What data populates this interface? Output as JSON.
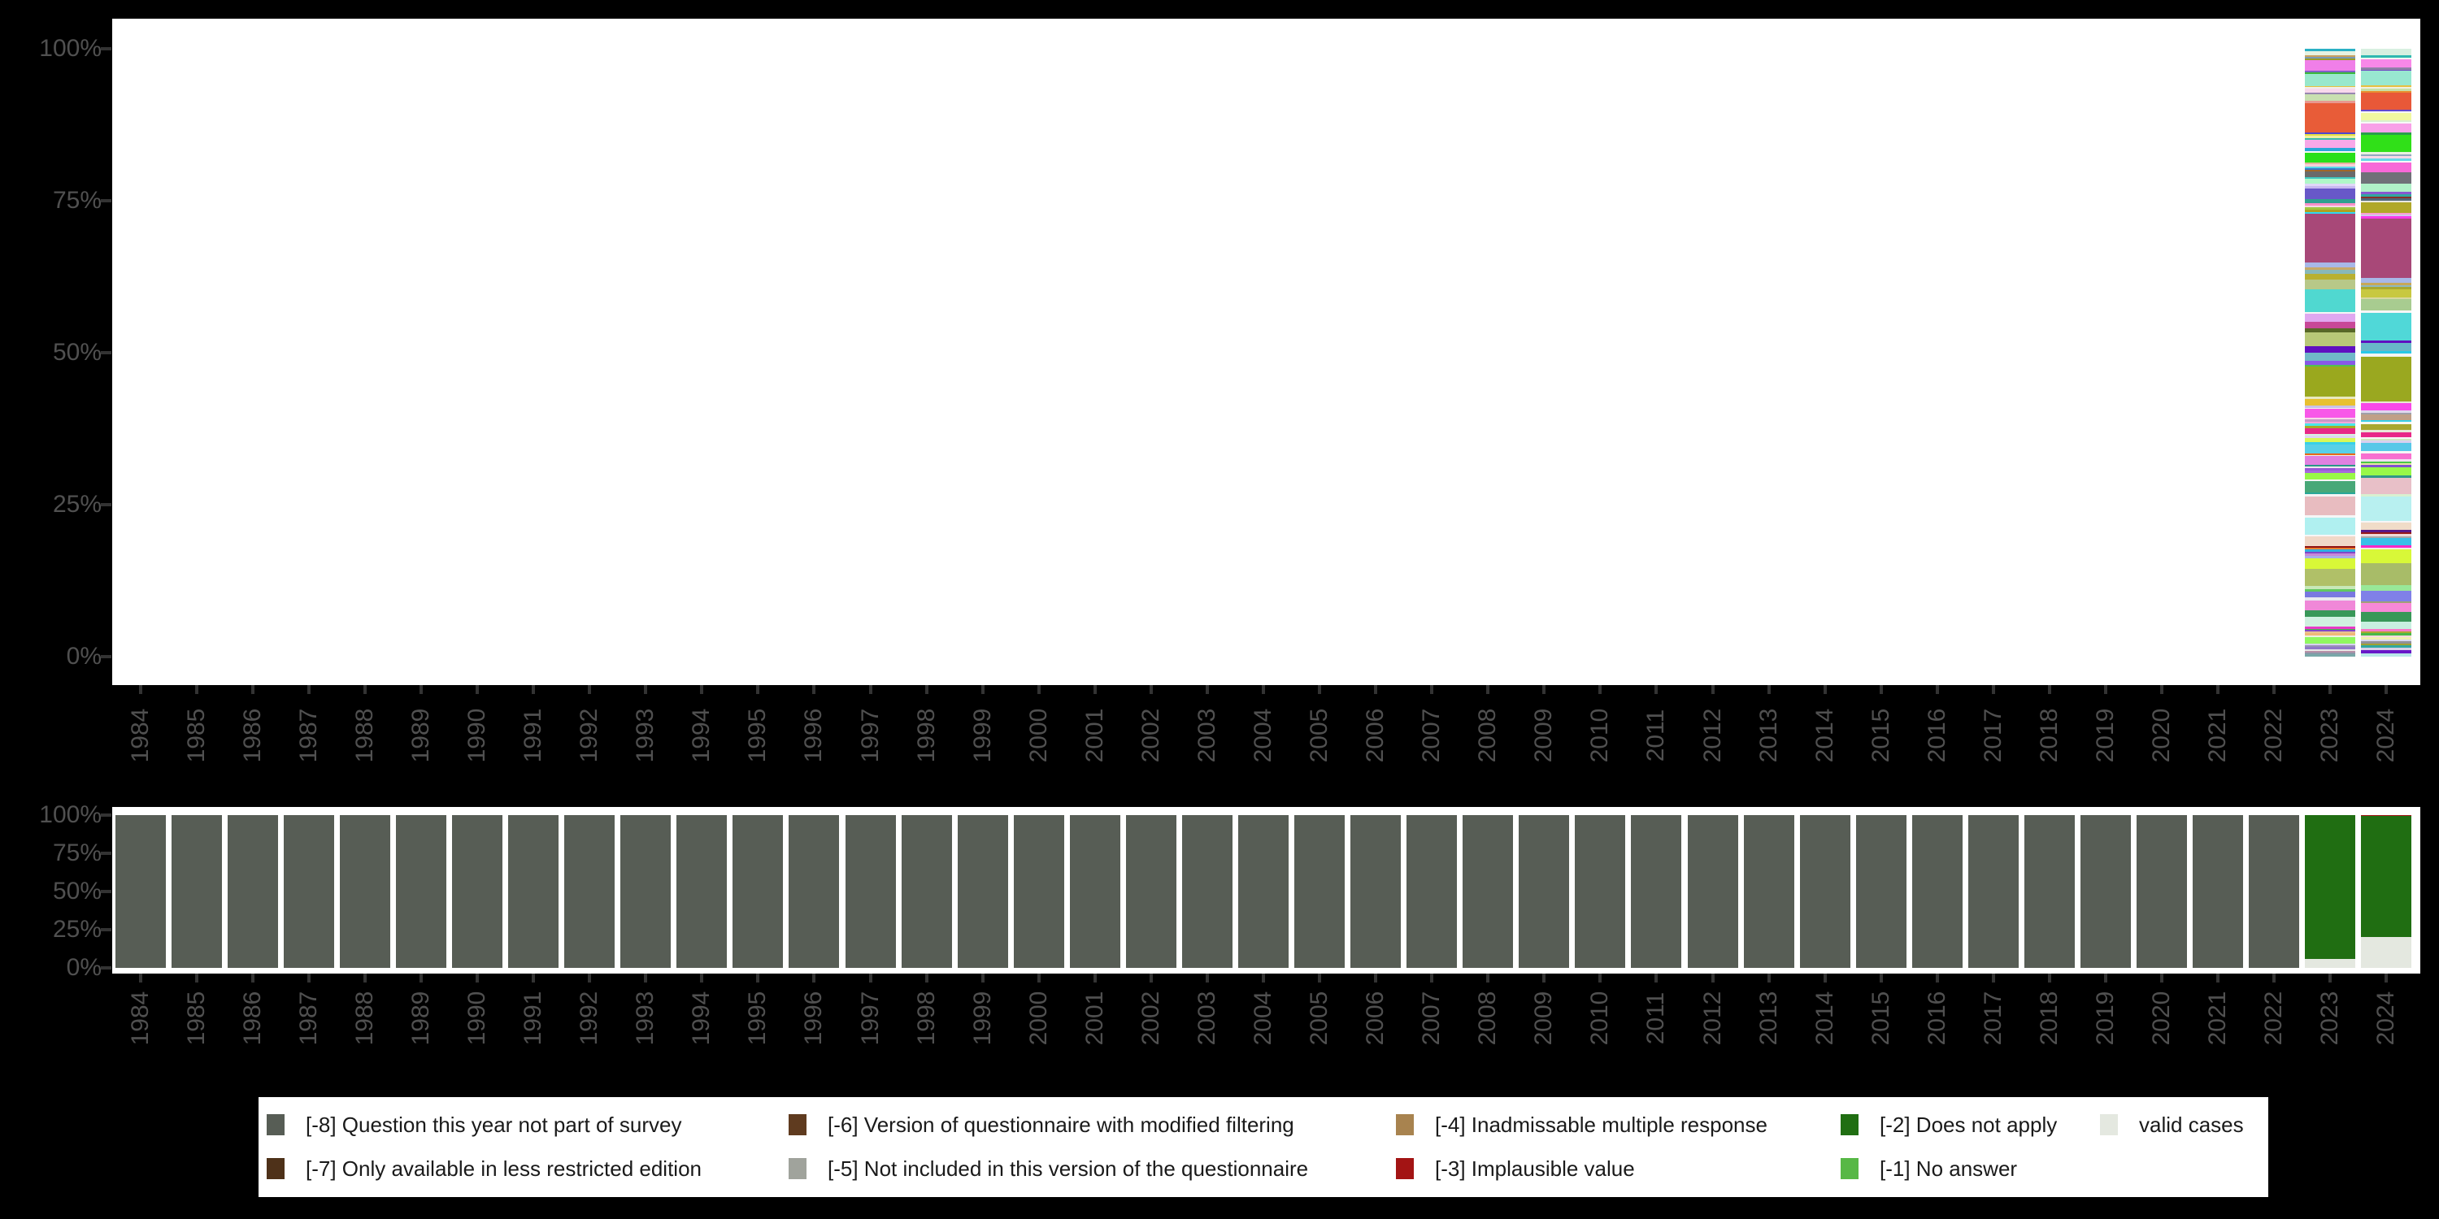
{
  "figure": {
    "background_color": "#000000",
    "plot_background_color": "#ffffff",
    "axis_label_color": "#505050",
    "tick_mark_color": "#333333"
  },
  "chart_data": [
    {
      "id": "top",
      "type": "bar",
      "subtype": "percent-stacked-column",
      "title": "",
      "xlabel": "",
      "ylabel": "",
      "ylim": [
        0,
        100
      ],
      "grid": false,
      "y_ticks": [
        "100%",
        "75%",
        "50%",
        "25%",
        "0%"
      ],
      "categories": [
        "1984",
        "1985",
        "1986",
        "1987",
        "1988",
        "1989",
        "1990",
        "1991",
        "1992",
        "1993",
        "1994",
        "1995",
        "1996",
        "1997",
        "1998",
        "1999",
        "2000",
        "2001",
        "2002",
        "2003",
        "2004",
        "2005",
        "2006",
        "2007",
        "2008",
        "2009",
        "2010",
        "2011",
        "2012",
        "2013",
        "2014",
        "2015",
        "2016",
        "2017",
        "2018",
        "2019",
        "2020",
        "2021",
        "2022",
        "2023",
        "2024"
      ],
      "note": "Distribution of valid answer categories; only 2023 and 2024 contain data. Segments listed top-to-bottom as [height_percent, color].",
      "bars": {
        "2023": [
          [
            0.36,
            "#2ab0c5"
          ],
          [
            0.75,
            "#e6f2e2"
          ],
          [
            0.23,
            "#c8a060"
          ],
          [
            0.31,
            "#7a9ab5"
          ],
          [
            0.27,
            "#9a9a28"
          ],
          [
            1.65,
            "#f07fe8"
          ],
          [
            0.31,
            "#8060c8"
          ],
          [
            0.23,
            "#38b838"
          ],
          [
            2.04,
            "#98e8cc"
          ],
          [
            0.17,
            "#e8c040"
          ],
          [
            0.27,
            "#efefe8"
          ],
          [
            0.63,
            "#f8d8ec"
          ],
          [
            0.27,
            "#9888b0"
          ],
          [
            1.13,
            "#c8e0b0"
          ],
          [
            0.29,
            "#e89890"
          ],
          [
            4.88,
            "#e85c38"
          ],
          [
            0.32,
            "#5048d0"
          ],
          [
            0.21,
            "#e8e040"
          ],
          [
            0.36,
            "#f0f0a0"
          ],
          [
            0.36,
            "#38c0a8"
          ],
          [
            1.33,
            "#f8a8e8"
          ],
          [
            0.44,
            "#28a8d8"
          ],
          [
            0.31,
            "#f6f6f2"
          ],
          [
            1.56,
            "#28e018"
          ],
          [
            0.36,
            "#e8b0a0"
          ],
          [
            0.31,
            "#f8d0d8"
          ],
          [
            0.31,
            "#58d8e8"
          ],
          [
            0.27,
            "#3878c8"
          ],
          [
            0.27,
            "#a06828"
          ],
          [
            0.93,
            "#6a6a6a"
          ],
          [
            0.32,
            "#40c8c0"
          ],
          [
            0.8,
            "#b0f8c8"
          ],
          [
            0.35,
            "#e0d8f8"
          ],
          [
            0.45,
            "#c8b8f0"
          ],
          [
            1.64,
            "#6858c8"
          ],
          [
            0.67,
            "#30a090"
          ],
          [
            0.44,
            "#f890c8"
          ],
          [
            0.32,
            "#f8d8e8"
          ],
          [
            0.31,
            "#a0c840"
          ],
          [
            0.4,
            "#b0a020"
          ],
          [
            0.31,
            "#30d8f0"
          ],
          [
            8.09,
            "#a84878"
          ],
          [
            0.8,
            "#a8b8e8"
          ],
          [
            0.36,
            "#c8a868"
          ],
          [
            0.61,
            "#88b8b8"
          ],
          [
            1.03,
            "#b8b030"
          ],
          [
            1.56,
            "#b8c888"
          ],
          [
            3.77,
            "#50d8d0"
          ],
          [
            0.23,
            "#f6f6f6"
          ],
          [
            1.33,
            "#e0a8f0"
          ],
          [
            1.11,
            "#c84898"
          ],
          [
            0.67,
            "#586828"
          ],
          [
            2.23,
            "#b8c878"
          ],
          [
            1.11,
            "#6010c0"
          ],
          [
            1.33,
            "#70b8c8"
          ],
          [
            0.67,
            "#8858e8"
          ],
          [
            0.23,
            "#50c050"
          ],
          [
            5.01,
            "#9aa81e"
          ],
          [
            0.36,
            "#e8e8c0"
          ],
          [
            1.07,
            "#e8c030"
          ],
          [
            0.36,
            "#c8c0e8"
          ],
          [
            0.21,
            "#f0f0f0"
          ],
          [
            1.43,
            "#f858e8"
          ],
          [
            0.31,
            "#f8d8e8"
          ],
          [
            0.36,
            "#c898c8"
          ],
          [
            0.36,
            "#f8a8d8"
          ],
          [
            0.31,
            "#48e8e8"
          ],
          [
            0.44,
            "#a8a828"
          ],
          [
            0.89,
            "#e82888"
          ],
          [
            0.31,
            "#d8f0e0"
          ],
          [
            0.45,
            "#ded6f2"
          ],
          [
            0.57,
            "#d8f858"
          ],
          [
            0.44,
            "#38d0e8"
          ],
          [
            1.47,
            "#58d0e8"
          ],
          [
            0.32,
            "#e86818"
          ],
          [
            0.13,
            "#f0f0e0"
          ],
          [
            1.41,
            "#e080e0"
          ],
          [
            0.32,
            "#289888"
          ],
          [
            0.21,
            "#eee8ee"
          ],
          [
            0.45,
            "#9858d8"
          ],
          [
            0.44,
            "#a868e0"
          ],
          [
            1.03,
            "#98f848"
          ],
          [
            0.31,
            "#f6f6f6"
          ],
          [
            1.77,
            "#48a878"
          ],
          [
            0.36,
            "#28a898"
          ],
          [
            0.36,
            "#f4f4f4"
          ],
          [
            3.11,
            "#e8bcc0"
          ],
          [
            0.36,
            "#f6f6f6"
          ],
          [
            2.75,
            "#b0f0f0"
          ],
          [
            0.36,
            "#f6f6f6"
          ],
          [
            1.6,
            "#f0d8c8"
          ],
          [
            0.27,
            "#901010"
          ],
          [
            0.17,
            "#e88030"
          ],
          [
            0.13,
            "#f0f0e8"
          ],
          [
            0.32,
            "#30b0e0"
          ],
          [
            0.35,
            "#8048c8"
          ],
          [
            0.36,
            "#c888d8"
          ],
          [
            0.44,
            "#a8b0e8"
          ],
          [
            1.65,
            "#d8f838"
          ],
          [
            2.8,
            "#b0c068"
          ],
          [
            0.53,
            "#c8e8b8"
          ],
          [
            0.44,
            "#60c860"
          ],
          [
            0.97,
            "#7878e0"
          ],
          [
            0.45,
            "#e8e8f0"
          ],
          [
            1.68,
            "#f088d8"
          ],
          [
            0.99,
            "#389858"
          ],
          [
            1.68,
            "#d0f0e0"
          ],
          [
            0.36,
            "#e838c8"
          ],
          [
            0.17,
            "#48b848"
          ],
          [
            0.27,
            "#8048c8"
          ],
          [
            0.32,
            "#e8c090"
          ],
          [
            0.31,
            "#f0b878"
          ],
          [
            0.27,
            "#f0f0e0"
          ],
          [
            1.07,
            "#90f860"
          ],
          [
            0.27,
            "#d8d0f0"
          ],
          [
            0.31,
            "#9890b8"
          ],
          [
            0.32,
            "#9078c8"
          ],
          [
            0.27,
            "#e8e8e8"
          ],
          [
            0.31,
            "#b890a8"
          ],
          [
            0.31,
            "#8898a8"
          ],
          [
            0.36,
            "#78a8a8"
          ]
        ],
        "2024": [
          [
            1.11,
            "#d8f0e0"
          ],
          [
            0.32,
            "#30b8b0"
          ],
          [
            0.27,
            "#f0f8f0"
          ],
          [
            1.41,
            "#f888e8"
          ],
          [
            0.36,
            "#9080a8"
          ],
          [
            0.17,
            "#7048c0"
          ],
          [
            2.36,
            "#98e8d0"
          ],
          [
            0.31,
            "#e8c040"
          ],
          [
            0.27,
            "#f0f0e0"
          ],
          [
            0.32,
            "#c8e0a8"
          ],
          [
            0.31,
            "#e89030"
          ],
          [
            2.8,
            "#e85838"
          ],
          [
            0.31,
            "#6048d0"
          ],
          [
            0.27,
            "#f6f6f6"
          ],
          [
            1.2,
            "#f0f8a0"
          ],
          [
            0.32,
            "#d8f0d0"
          ],
          [
            0.27,
            "#f8f8f8"
          ],
          [
            1.41,
            "#f8a0e8"
          ],
          [
            0.36,
            "#28a048"
          ],
          [
            2.84,
            "#30e018"
          ],
          [
            0.36,
            "#e8f0e0"
          ],
          [
            0.36,
            "#90a8c0"
          ],
          [
            0.31,
            "#f8d8e8"
          ],
          [
            0.44,
            "#68d8e8"
          ],
          [
            0.32,
            "#f8f8f8"
          ],
          [
            1.6,
            "#f868d8"
          ],
          [
            1.87,
            "#707078"
          ],
          [
            1.33,
            "#b0f0c8"
          ],
          [
            0.44,
            "#8858d0"
          ],
          [
            0.36,
            "#30a8a0"
          ],
          [
            0.31,
            "#883028"
          ],
          [
            0.31,
            "#506878"
          ],
          [
            0.36,
            "#e8e8e0"
          ],
          [
            1.69,
            "#b0a828"
          ],
          [
            0.31,
            "#f8a0d0"
          ],
          [
            0.23,
            "#d0c8f0"
          ],
          [
            0.35,
            "#f838e8"
          ],
          [
            9.79,
            "#a84878"
          ],
          [
            0.88,
            "#a8b8e8"
          ],
          [
            0.32,
            "#c8a858"
          ],
          [
            0.31,
            "#90b8c0"
          ],
          [
            0.36,
            "#a8a830"
          ],
          [
            1.33,
            "#c8c840"
          ],
          [
            0.35,
            "#d8d8a0"
          ],
          [
            1.87,
            "#a8cc90"
          ],
          [
            0.36,
            "#f6f6f6"
          ],
          [
            4.53,
            "#50d8d8"
          ],
          [
            0.36,
            "#6010c0"
          ],
          [
            1.41,
            "#68b8c8"
          ],
          [
            0.36,
            "#28c8e8"
          ],
          [
            0.53,
            "#f4f4f4"
          ],
          [
            7.33,
            "#9aa820"
          ],
          [
            0.31,
            "#e8e8d0"
          ],
          [
            1.25,
            "#f848e8"
          ],
          [
            0.35,
            "#e0d8f0"
          ],
          [
            0.32,
            "#a0a0a8"
          ],
          [
            0.88,
            "#c0a088"
          ],
          [
            0.32,
            "#38d0e8"
          ],
          [
            0.35,
            "#f8f8f0"
          ],
          [
            0.99,
            "#a8a830"
          ],
          [
            0.35,
            "#e8e8d8"
          ],
          [
            0.8,
            "#e82888"
          ],
          [
            0.32,
            "#f8f8f8"
          ],
          [
            0.31,
            "#d0e8c0"
          ],
          [
            0.36,
            "#d8d0f0"
          ],
          [
            1.33,
            "#58c8e8"
          ],
          [
            0.35,
            "#f6f6f6"
          ],
          [
            0.99,
            "#f870d0"
          ],
          [
            0.35,
            "#f0e0f0"
          ],
          [
            0.32,
            "#48c848"
          ],
          [
            0.31,
            "#e8e8a0"
          ],
          [
            0.36,
            "#8050d0"
          ],
          [
            1.33,
            "#98f848"
          ],
          [
            0.35,
            "#309888"
          ],
          [
            2.76,
            "#e8c0c8"
          ],
          [
            0.36,
            "#d8f0d0"
          ],
          [
            4.0,
            "#b8f0f0"
          ],
          [
            0.31,
            "#f6f6f6"
          ],
          [
            1.2,
            "#f0dcc8"
          ],
          [
            0.36,
            "#581888"
          ],
          [
            0.35,
            "#981818"
          ],
          [
            0.32,
            "#f0d8d8"
          ],
          [
            0.31,
            "#a8a8a8"
          ],
          [
            1.24,
            "#38c0e8"
          ],
          [
            0.36,
            "#f828c8"
          ],
          [
            0.31,
            "#f0f0e0"
          ],
          [
            2.23,
            "#d8f838"
          ],
          [
            3.56,
            "#a8bc68"
          ],
          [
            1.01,
            "#98e898"
          ],
          [
            1.65,
            "#8080e8"
          ],
          [
            0.31,
            "#a0a078"
          ],
          [
            1.47,
            "#f888d8"
          ],
          [
            1.56,
            "#389858"
          ],
          [
            1.33,
            "#c8f0e0"
          ],
          [
            0.35,
            "#f878c8"
          ],
          [
            0.32,
            "#a8a830"
          ],
          [
            0.31,
            "#48b848"
          ],
          [
            0.36,
            "#f8d8e0"
          ],
          [
            0.35,
            "#f0f0b0"
          ],
          [
            0.32,
            "#d8d8f0"
          ],
          [
            0.31,
            "#909098"
          ],
          [
            0.36,
            "#a0a030"
          ],
          [
            0.35,
            "#30a8a0"
          ],
          [
            0.45,
            "#d8d0e8"
          ],
          [
            0.44,
            "#6818c8"
          ],
          [
            0.53,
            "#b8e8e8"
          ]
        ]
      }
    },
    {
      "id": "bottom",
      "type": "bar",
      "subtype": "percent-stacked-column",
      "title": "",
      "xlabel": "",
      "ylabel": "",
      "ylim": [
        0,
        100
      ],
      "grid": false,
      "y_ticks": [
        "100%",
        "75%",
        "50%",
        "25%",
        "0%"
      ],
      "categories": [
        "1984",
        "1985",
        "1986",
        "1987",
        "1988",
        "1989",
        "1990",
        "1991",
        "1992",
        "1993",
        "1994",
        "1995",
        "1996",
        "1997",
        "1998",
        "1999",
        "2000",
        "2001",
        "2002",
        "2003",
        "2004",
        "2005",
        "2006",
        "2007",
        "2008",
        "2009",
        "2010",
        "2011",
        "2012",
        "2013",
        "2014",
        "2015",
        "2016",
        "2017",
        "2018",
        "2019",
        "2020",
        "2021",
        "2022",
        "2023",
        "2024"
      ],
      "note": "Missing-data composition per year. 1984-2022 are 100% '[-8] Question this year not part of survey'.",
      "default_stack": [
        [
          100,
          "#575d55"
        ]
      ],
      "bars": {
        "2023": [
          [
            94.3,
            "#206e12"
          ],
          [
            5.7,
            "#e4e8e0"
          ]
        ],
        "2024": [
          [
            0.7,
            "#a31414"
          ],
          [
            79.4,
            "#206e12"
          ],
          [
            19.9,
            "#e4e8e0"
          ]
        ]
      }
    }
  ],
  "legend": {
    "background_color": "#ffffff",
    "text_color": "#1a1a1a",
    "rows": [
      [
        {
          "label": "[-8] Question this year not part of survey",
          "color": "#575d55"
        },
        {
          "label": "[-6] Version of questionnaire with modified filtering",
          "color": "#5f3b1f"
        },
        {
          "label": "[-4] Inadmissable multiple response",
          "color": "#a8834f"
        },
        {
          "label": "[-2] Does not apply",
          "color": "#206e12"
        },
        {
          "label": "valid cases",
          "color": "#e4e8e0"
        }
      ],
      [
        {
          "label": "[-7] Only available in less restricted edition",
          "color": "#4e3119"
        },
        {
          "label": "[-5] Not included in this version of the questionnaire",
          "color": "#a0a39c"
        },
        {
          "label": "[-3] Implausible value",
          "color": "#a31414"
        },
        {
          "label": "[-1] No answer",
          "color": "#57b846"
        }
      ]
    ]
  }
}
